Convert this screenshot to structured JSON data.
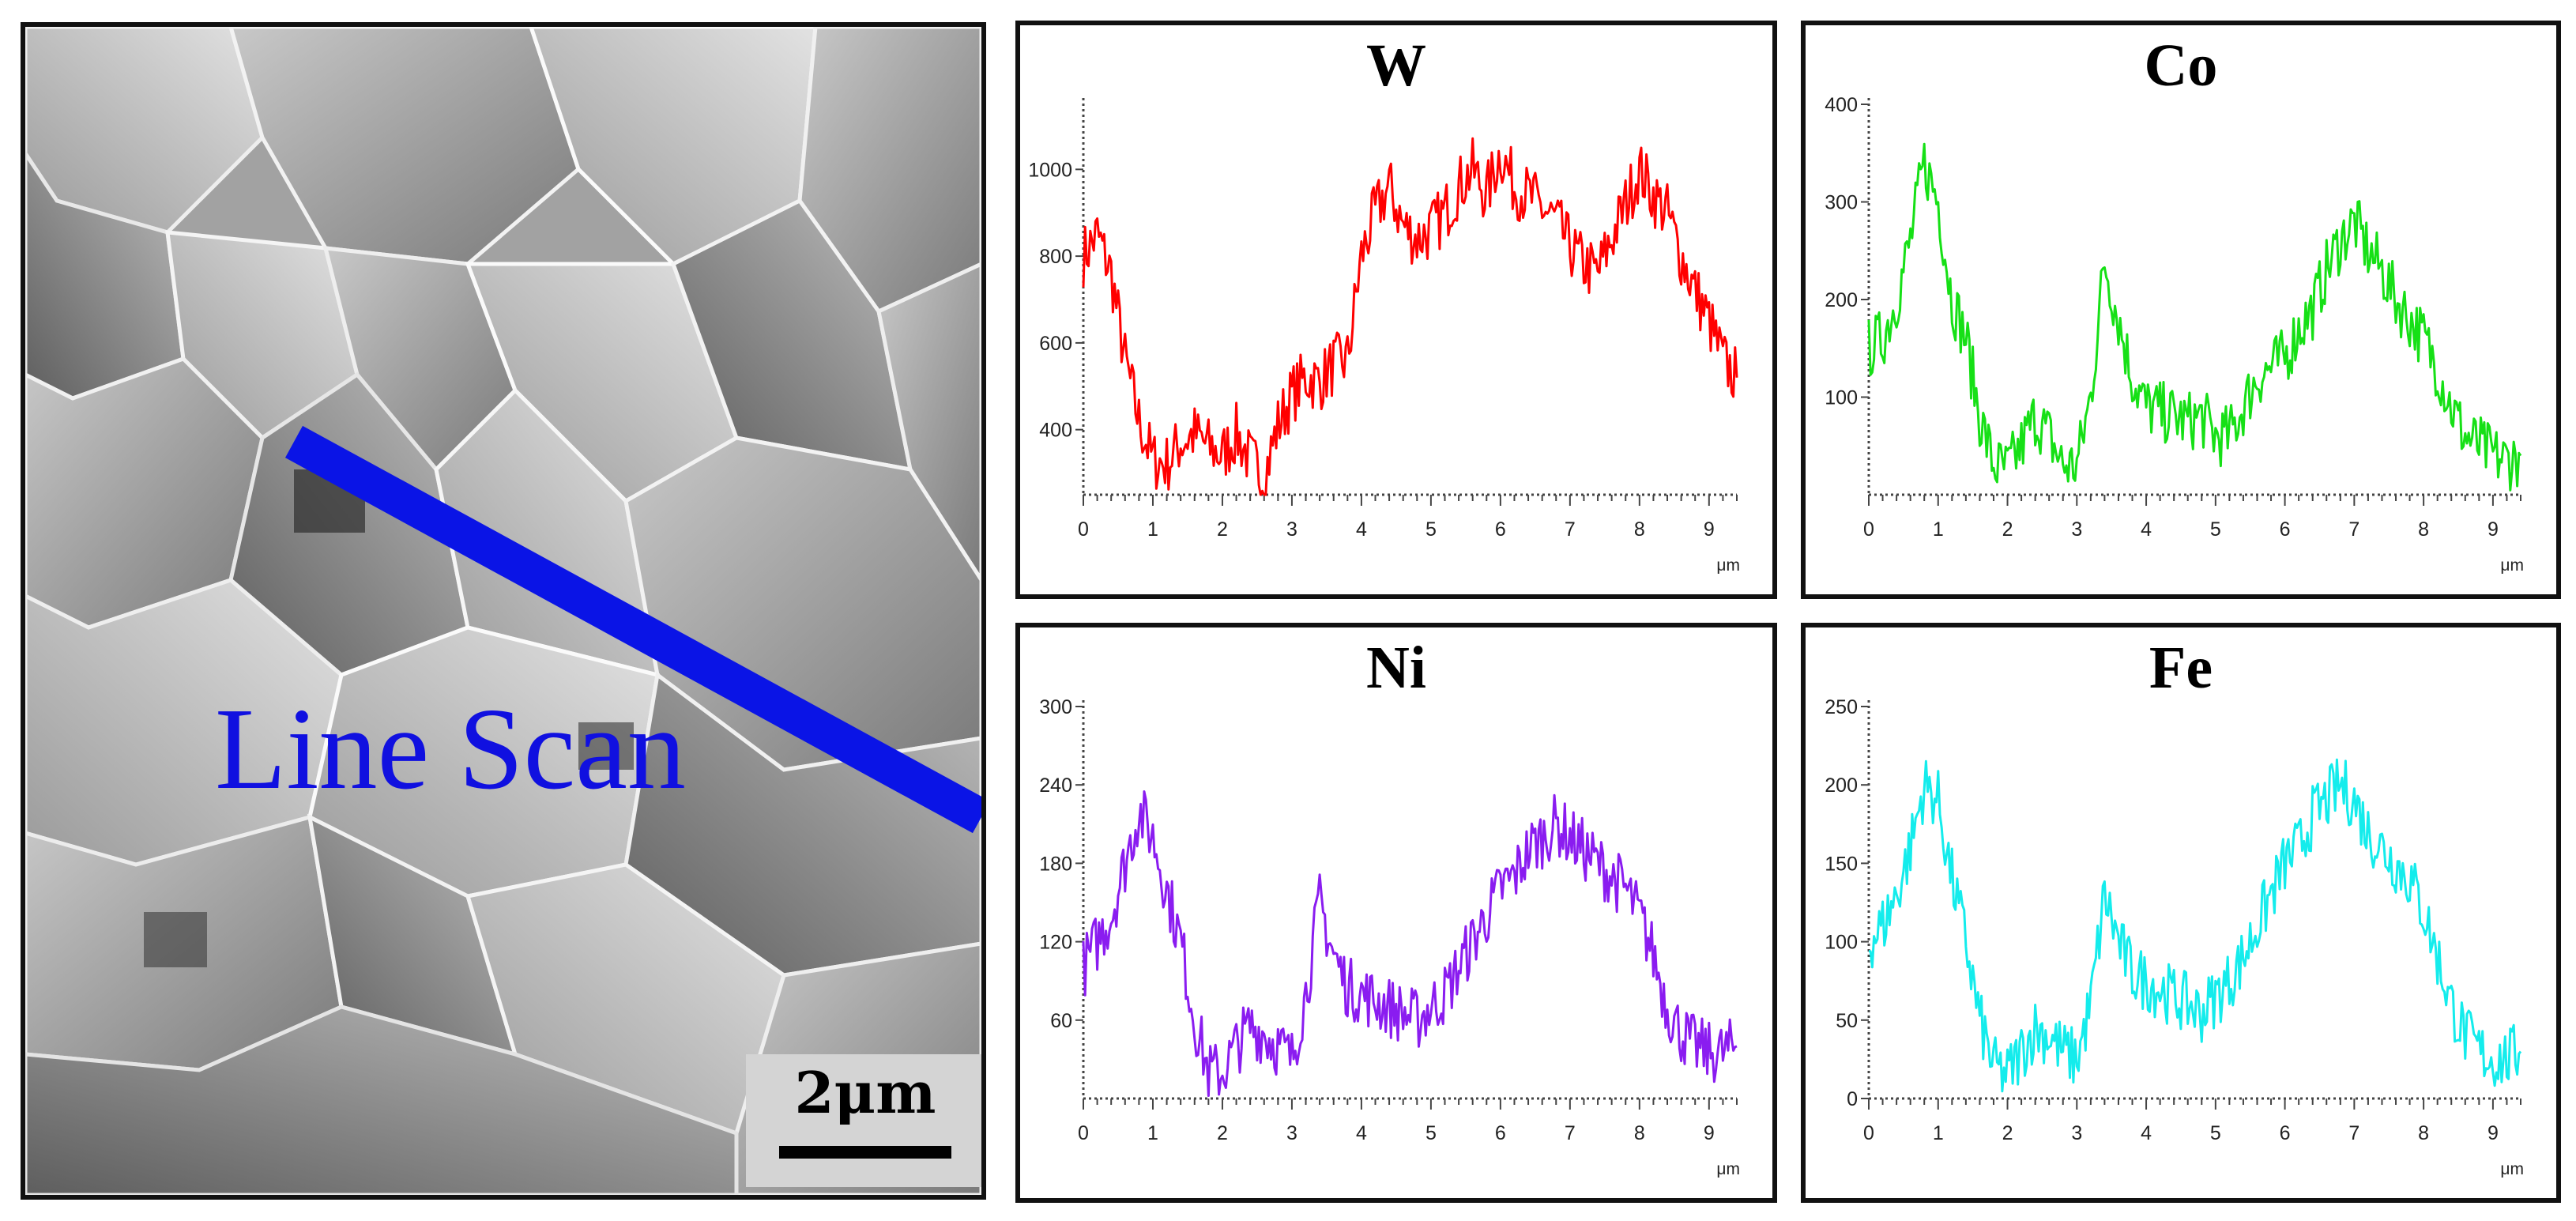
{
  "sem": {
    "scan_label": "Line Scan",
    "scale_label": "2μm",
    "scan_line_color": "#0a14e6"
  },
  "chart_data": [
    {
      "type": "line",
      "title": "W",
      "xlabel": "μm",
      "ylabel": "",
      "xlim": [
        0,
        9.4
      ],
      "ylim": [
        250,
        1150
      ],
      "x_ticks": [
        "0",
        "1",
        "2",
        "3",
        "4",
        "5",
        "6",
        "7",
        "8",
        "9"
      ],
      "y_ticks": [
        {
          "v": 400,
          "label": "400"
        },
        {
          "v": 600,
          "label": "600"
        },
        {
          "v": 800,
          "label": "800"
        },
        {
          "v": 1000,
          "label": "1000"
        }
      ],
      "color": "#ff0000",
      "series": [
        {
          "x": [
            0,
            0.2,
            0.4,
            0.6,
            0.8,
            1.0,
            1.2,
            1.4,
            1.6,
            1.8,
            2.0,
            2.2,
            2.4,
            2.6,
            2.8,
            3.0,
            3.2,
            3.4,
            3.6,
            3.8,
            4.0,
            4.2,
            4.4,
            4.6,
            4.8,
            5.0,
            5.2,
            5.4,
            5.6,
            5.8,
            6.0,
            6.2,
            6.4,
            6.6,
            6.8,
            7.0,
            7.2,
            7.4,
            7.6,
            7.8,
            8.0,
            8.2,
            8.4,
            8.6,
            8.8,
            9.0,
            9.2,
            9.4
          ],
          "y": [
            800,
            850,
            760,
            560,
            420,
            330,
            320,
            370,
            390,
            360,
            340,
            390,
            330,
            290,
            410,
            480,
            520,
            510,
            550,
            560,
            800,
            900,
            960,
            870,
            840,
            860,
            900,
            960,
            1000,
            940,
            1040,
            960,
            940,
            910,
            880,
            820,
            780,
            760,
            840,
            920,
            1000,
            940,
            900,
            800,
            720,
            650,
            560,
            520
          ]
        }
      ]
    },
    {
      "type": "line",
      "title": "Co",
      "xlabel": "μm",
      "ylabel": "",
      "xlim": [
        0,
        9.4
      ],
      "ylim": [
        0,
        400
      ],
      "x_ticks": [
        "0",
        "1",
        "2",
        "3",
        "4",
        "5",
        "6",
        "7",
        "8",
        "9"
      ],
      "y_ticks": [
        {
          "v": 100,
          "label": "100"
        },
        {
          "v": 200,
          "label": "200"
        },
        {
          "v": 300,
          "label": "300"
        },
        {
          "v": 400,
          "label": "400"
        }
      ],
      "color": "#16e016",
      "series": [
        {
          "x": [
            0,
            0.2,
            0.4,
            0.6,
            0.8,
            1.0,
            1.2,
            1.4,
            1.6,
            1.8,
            2.0,
            2.2,
            2.4,
            2.6,
            2.8,
            3.0,
            3.2,
            3.4,
            3.6,
            3.8,
            4.0,
            4.2,
            4.4,
            4.6,
            4.8,
            5.0,
            5.2,
            5.4,
            5.6,
            5.8,
            6.0,
            6.2,
            6.4,
            6.6,
            6.8,
            7.0,
            7.2,
            7.4,
            7.6,
            7.8,
            8.0,
            8.2,
            8.4,
            8.6,
            8.8,
            9.0,
            9.2,
            9.4
          ],
          "y": [
            150,
            160,
            200,
            260,
            340,
            300,
            200,
            160,
            80,
            30,
            25,
            50,
            80,
            60,
            30,
            30,
            100,
            240,
            180,
            120,
            90,
            85,
            80,
            75,
            80,
            60,
            60,
            90,
            120,
            130,
            140,
            170,
            190,
            230,
            260,
            280,
            250,
            230,
            200,
            180,
            160,
            130,
            90,
            60,
            50,
            40,
            35,
            40
          ]
        }
      ]
    },
    {
      "type": "line",
      "title": "Ni",
      "xlabel": "μm",
      "ylabel": "",
      "xlim": [
        0,
        9.4
      ],
      "ylim": [
        0,
        300
      ],
      "x_ticks": [
        "0",
        "1",
        "2",
        "3",
        "4",
        "5",
        "6",
        "7",
        "8",
        "9"
      ],
      "y_ticks": [
        {
          "v": 60,
          "label": "60"
        },
        {
          "v": 120,
          "label": "120"
        },
        {
          "v": 180,
          "label": "180"
        },
        {
          "v": 240,
          "label": "240"
        },
        {
          "v": 300,
          "label": "300"
        }
      ],
      "color": "#8a1cf0",
      "series": [
        {
          "x": [
            0,
            0.2,
            0.4,
            0.6,
            0.8,
            1.0,
            1.2,
            1.4,
            1.6,
            1.8,
            2.0,
            2.2,
            2.4,
            2.6,
            2.8,
            3.0,
            3.2,
            3.4,
            3.6,
            3.8,
            4.0,
            4.2,
            4.4,
            4.6,
            4.8,
            5.0,
            5.2,
            5.4,
            5.6,
            5.8,
            6.0,
            6.2,
            6.4,
            6.6,
            6.8,
            7.0,
            7.2,
            7.4,
            7.6,
            7.8,
            8.0,
            8.2,
            8.4,
            8.6,
            8.8,
            9.0,
            9.2,
            9.4
          ],
          "y": [
            100,
            120,
            140,
            180,
            220,
            200,
            160,
            120,
            60,
            20,
            20,
            40,
            55,
            50,
            40,
            30,
            80,
            150,
            110,
            85,
            80,
            75,
            70,
            65,
            60,
            70,
            80,
            100,
            120,
            140,
            160,
            170,
            190,
            200,
            210,
            200,
            190,
            180,
            170,
            160,
            140,
            110,
            70,
            50,
            40,
            35,
            35,
            40
          ]
        }
      ]
    },
    {
      "type": "line",
      "title": "Fe",
      "xlabel": "μm",
      "ylabel": "",
      "xlim": [
        0,
        9.4
      ],
      "ylim": [
        0,
        250
      ],
      "x_ticks": [
        "0",
        "1",
        "2",
        "3",
        "4",
        "5",
        "6",
        "7",
        "8",
        "9"
      ],
      "y_ticks": [
        {
          "v": 0,
          "label": "0"
        },
        {
          "v": 50,
          "label": "50"
        },
        {
          "v": 100,
          "label": "100"
        },
        {
          "v": 150,
          "label": "150"
        },
        {
          "v": 200,
          "label": "200"
        },
        {
          "v": 250,
          "label": "250"
        }
      ],
      "color": "#14ecec",
      "series": [
        {
          "x": [
            0,
            0.2,
            0.4,
            0.6,
            0.8,
            1.0,
            1.2,
            1.4,
            1.6,
            1.8,
            2.0,
            2.2,
            2.4,
            2.6,
            2.8,
            3.0,
            3.2,
            3.4,
            3.6,
            3.8,
            4.0,
            4.2,
            4.4,
            4.6,
            4.8,
            5.0,
            5.2,
            5.4,
            5.6,
            5.8,
            6.0,
            6.2,
            6.4,
            6.6,
            6.8,
            7.0,
            7.2,
            7.4,
            7.6,
            7.8,
            8.0,
            8.2,
            8.4,
            8.6,
            8.8,
            9.0,
            9.2,
            9.4
          ],
          "y": [
            100,
            110,
            130,
            160,
            200,
            190,
            140,
            100,
            50,
            20,
            15,
            30,
            45,
            40,
            30,
            25,
            60,
            130,
            100,
            80,
            75,
            70,
            65,
            60,
            55,
            65,
            75,
            90,
            110,
            130,
            150,
            160,
            180,
            190,
            200,
            190,
            170,
            160,
            150,
            140,
            120,
            90,
            60,
            40,
            30,
            25,
            25,
            30
          ]
        }
      ]
    }
  ]
}
